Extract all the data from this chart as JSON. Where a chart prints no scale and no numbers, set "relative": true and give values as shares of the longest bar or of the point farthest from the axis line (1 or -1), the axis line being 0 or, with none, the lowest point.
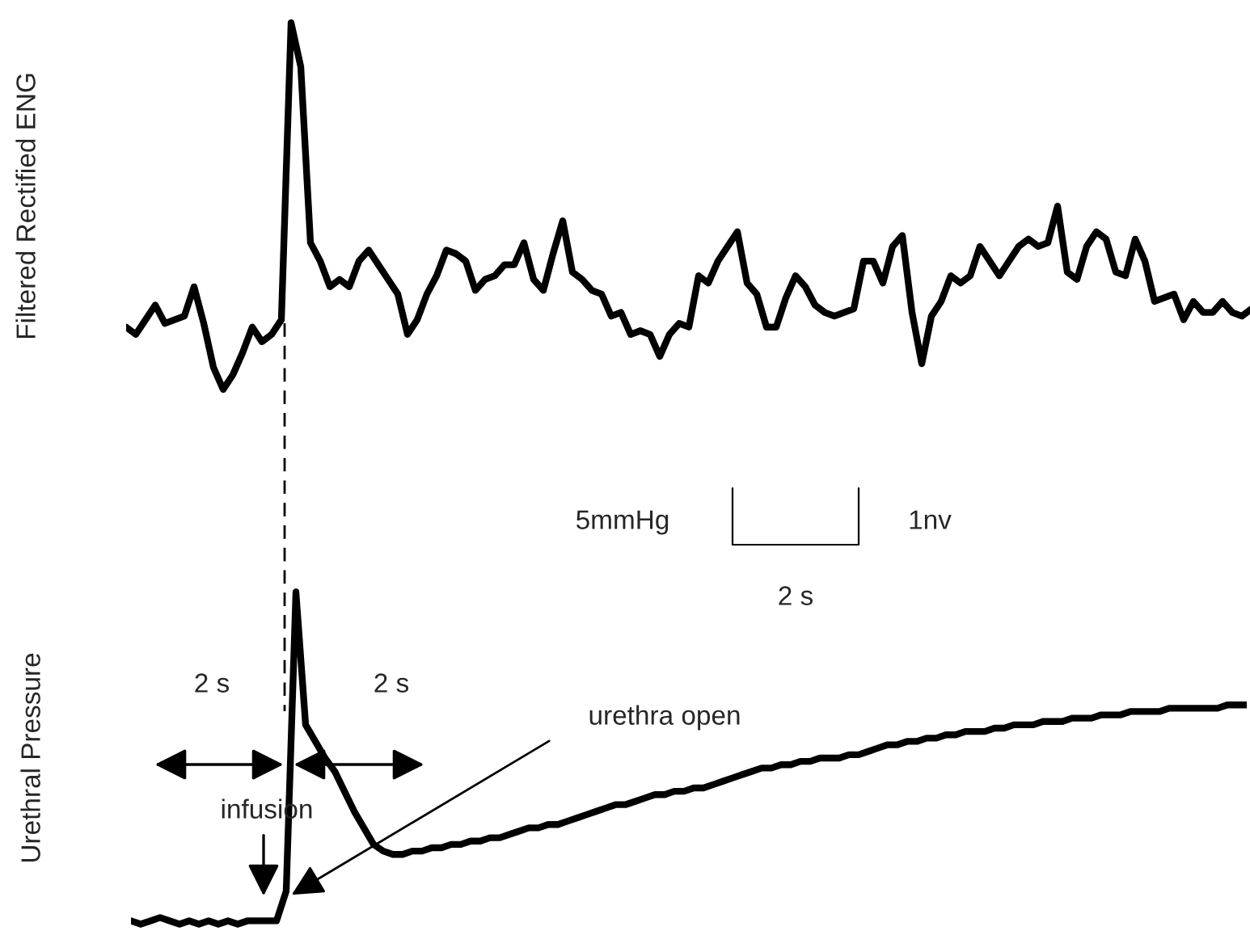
{
  "chart_data": [
    {
      "type": "line",
      "ylabel": "Filtered Rectified ENG",
      "relative": true,
      "categories": [
        null,
        null,
        null,
        null,
        null,
        null,
        null,
        null,
        null,
        null,
        null,
        null,
        null,
        null,
        null,
        null,
        null,
        null,
        null,
        null,
        null,
        null,
        null,
        null,
        null,
        null,
        null,
        null,
        null,
        null,
        null,
        null,
        null,
        null,
        null,
        null,
        null,
        null,
        null,
        null,
        null,
        null,
        null,
        null,
        null,
        null,
        null,
        null,
        null,
        null,
        null,
        null,
        null,
        null,
        null,
        null,
        null,
        null,
        null,
        null,
        null,
        null,
        null,
        null,
        null,
        null,
        null,
        null,
        null,
        null,
        null,
        null,
        null,
        null,
        null,
        null,
        null,
        null,
        null,
        null,
        null,
        null,
        null,
        null,
        null,
        null,
        null,
        null,
        null,
        null,
        null,
        null,
        null,
        null,
        null,
        null,
        null,
        null,
        null,
        null,
        null,
        null,
        null,
        null,
        null,
        null,
        null,
        null,
        null,
        null,
        null,
        null,
        null,
        null,
        null,
        null,
        null
      ],
      "series": [
        {
          "color": "#000000",
          "values": [
            0.17,
            0.15,
            0.19,
            0.23,
            0.18,
            0.19,
            0.2,
            0.28,
            0.18,
            0.06,
            0,
            0.04,
            0.1,
            0.17,
            0.13,
            0.15,
            0.19,
            1,
            0.88,
            0.4,
            0.35,
            0.28,
            0.3,
            0.28,
            0.35,
            0.38,
            0.34,
            0.3,
            0.26,
            0.15,
            0.19,
            0.26,
            0.31,
            0.38,
            0.37,
            0.35,
            0.27,
            0.3,
            0.31,
            0.34,
            0.34,
            0.4,
            0.3,
            0.27,
            0.37,
            0.46,
            0.32,
            0.3,
            0.27,
            0.26,
            0.2,
            0.21,
            0.15,
            0.16,
            0.15,
            0.09,
            0.15,
            0.18,
            0.17,
            0.31,
            0.29,
            0.35,
            0.39,
            0.43,
            0.29,
            0.26,
            0.17,
            0.17,
            0.25,
            0.31,
            0.28,
            0.23,
            0.21,
            0.2,
            0.21,
            0.22,
            0.35,
            0.35,
            0.29,
            0.39,
            0.42,
            0.21,
            0.07,
            0.2,
            0.24,
            0.31,
            0.29,
            0.31,
            0.39,
            0.35,
            0.31,
            0.35,
            0.39,
            0.41,
            0.39,
            0.4,
            0.5,
            0.32,
            0.3,
            0.39,
            0.43,
            0.41,
            0.32,
            0.31,
            0.41,
            0.35,
            0.24,
            0.25,
            0.26,
            0.19,
            0.24,
            0.21,
            0.21,
            0.24,
            0.21,
            0.2,
            0.22
          ]
        }
      ]
    },
    {
      "type": "line",
      "ylabel": "Urethral Pressure",
      "relative": true,
      "categories": [
        null,
        null,
        null,
        null,
        null,
        null,
        null,
        null,
        null,
        null,
        null,
        null,
        null,
        null,
        null,
        null,
        null,
        null,
        null,
        null,
        null,
        null,
        null,
        null,
        null,
        null,
        null,
        null,
        null,
        null,
        null,
        null,
        null,
        null,
        null,
        null,
        null,
        null,
        null,
        null,
        null,
        null,
        null,
        null,
        null,
        null,
        null,
        null,
        null,
        null,
        null,
        null,
        null,
        null,
        null,
        null,
        null,
        null,
        null,
        null,
        null,
        null,
        null,
        null,
        null,
        null,
        null,
        null,
        null,
        null,
        null,
        null,
        null,
        null,
        null,
        null,
        null,
        null,
        null,
        null,
        null,
        null,
        null,
        null,
        null,
        null,
        null,
        null,
        null,
        null,
        null,
        null,
        null,
        null,
        null,
        null,
        null,
        null,
        null,
        null,
        null,
        null,
        null,
        null,
        null,
        null,
        null,
        null,
        null,
        null,
        null,
        null,
        null,
        null,
        null,
        null
      ],
      "annotations": [
        "2 s",
        "2 s",
        "infusion",
        "urethra open",
        "5mmHg",
        "1nv",
        "2 s"
      ],
      "series": [
        {
          "color": "#000000",
          "values": [
            0.01,
            0,
            0.01,
            0.02,
            0.01,
            0,
            0.01,
            0,
            0.01,
            0,
            0.01,
            0,
            0.01,
            0.01,
            0.01,
            0.01,
            0.1,
            1,
            0.6,
            0.55,
            0.5,
            0.46,
            0.4,
            0.34,
            0.29,
            0.24,
            0.22,
            0.21,
            0.21,
            0.22,
            0.22,
            0.23,
            0.23,
            0.24,
            0.24,
            0.25,
            0.25,
            0.26,
            0.26,
            0.27,
            0.28,
            0.29,
            0.29,
            0.3,
            0.3,
            0.31,
            0.32,
            0.33,
            0.34,
            0.35,
            0.36,
            0.36,
            0.37,
            0.38,
            0.39,
            0.39,
            0.4,
            0.4,
            0.41,
            0.41,
            0.42,
            0.43,
            0.44,
            0.45,
            0.46,
            0.47,
            0.47,
            0.48,
            0.48,
            0.49,
            0.49,
            0.5,
            0.5,
            0.5,
            0.51,
            0.51,
            0.52,
            0.53,
            0.54,
            0.54,
            0.55,
            0.55,
            0.56,
            0.56,
            0.57,
            0.57,
            0.58,
            0.58,
            0.58,
            0.59,
            0.59,
            0.6,
            0.6,
            0.6,
            0.61,
            0.61,
            0.61,
            0.62,
            0.62,
            0.62,
            0.63,
            0.63,
            0.63,
            0.64,
            0.64,
            0.64,
            0.64,
            0.65,
            0.65,
            0.65,
            0.65,
            0.65,
            0.65,
            0.66,
            0.66,
            0.66
          ]
        }
      ]
    }
  ]
}
